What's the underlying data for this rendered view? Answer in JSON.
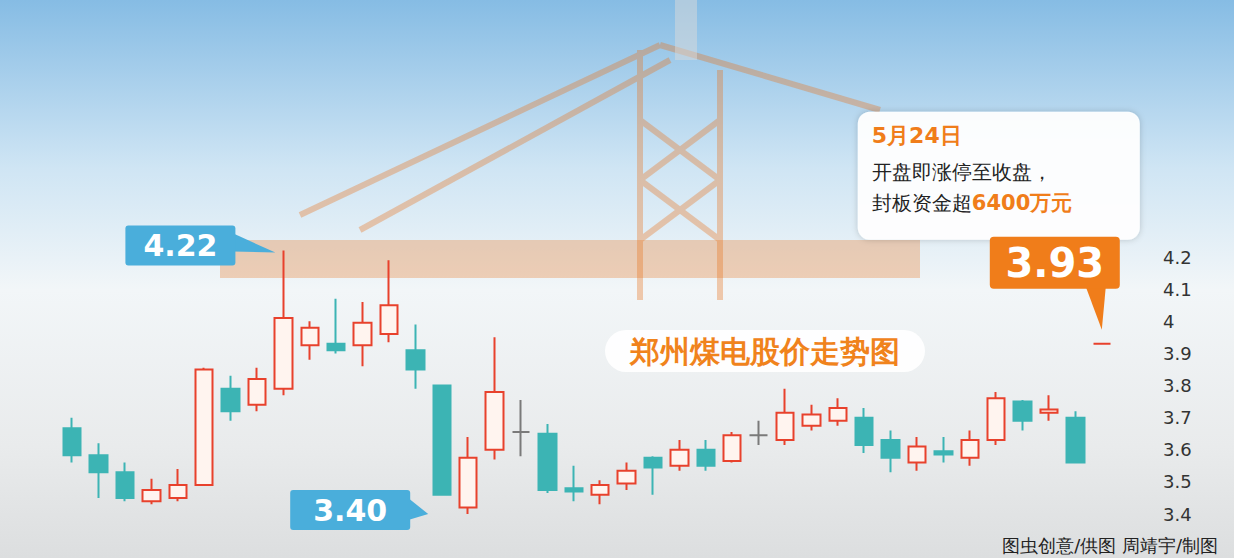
{
  "chart_data": {
    "type": "candlestick",
    "title": "郑州煤电股价走势图",
    "categories": [
      null,
      null,
      null,
      null,
      null,
      null,
      null,
      null,
      null,
      null,
      null,
      null,
      null,
      null,
      null,
      null,
      null,
      null,
      null,
      null,
      null,
      null,
      null,
      null,
      null,
      null,
      null,
      null,
      null,
      null,
      null,
      null,
      null,
      null,
      null,
      null,
      null,
      null,
      null,
      null
    ],
    "values": [
      [
        3.667,
        3.583,
        3.56,
        3.7
      ],
      [
        3.583,
        3.53,
        3.45,
        3.62
      ],
      [
        3.53,
        3.45,
        3.44,
        3.56
      ],
      [
        3.44,
        3.475,
        3.43,
        3.51
      ],
      [
        3.45,
        3.49,
        3.44,
        3.54
      ],
      [
        3.49,
        3.85,
        3.49,
        3.855
      ],
      [
        3.79,
        3.72,
        3.69,
        3.83
      ],
      [
        3.74,
        3.82,
        3.72,
        3.855
      ],
      [
        3.79,
        4.01,
        3.77,
        4.22
      ],
      [
        3.925,
        3.98,
        3.88,
        4.0
      ],
      [
        3.93,
        3.91,
        3.9,
        4.07
      ],
      [
        3.925,
        3.995,
        3.86,
        4.06
      ],
      [
        3.96,
        4.05,
        3.935,
        4.19
      ],
      [
        3.91,
        3.85,
        3.79,
        3.99
      ],
      [
        3.8,
        3.46,
        3.46,
        3.8
      ],
      [
        3.42,
        3.575,
        3.4,
        3.64
      ],
      [
        3.6,
        3.78,
        3.57,
        3.95
      ],
      [
        3.655,
        3.655,
        3.58,
        3.755
      ],
      [
        3.65,
        3.475,
        3.465,
        3.68
      ],
      [
        3.48,
        3.47,
        3.44,
        3.55
      ],
      [
        3.46,
        3.49,
        3.43,
        3.505
      ],
      [
        3.495,
        3.535,
        3.475,
        3.56
      ],
      [
        3.575,
        3.545,
        3.46,
        3.58
      ],
      [
        3.55,
        3.6,
        3.535,
        3.63
      ],
      [
        3.6,
        3.55,
        3.535,
        3.63
      ],
      [
        3.565,
        3.645,
        3.56,
        3.655
      ],
      [
        3.645,
        3.645,
        3.615,
        3.69
      ],
      [
        3.63,
        3.715,
        3.615,
        3.79
      ],
      [
        3.675,
        3.71,
        3.66,
        3.74
      ],
      [
        3.69,
        3.73,
        3.675,
        3.76
      ],
      [
        3.7,
        3.615,
        3.59,
        3.73
      ],
      [
        3.63,
        3.575,
        3.53,
        3.66
      ],
      [
        3.56,
        3.61,
        3.535,
        3.64
      ],
      [
        3.595,
        3.585,
        3.56,
        3.64
      ],
      [
        3.575,
        3.63,
        3.55,
        3.66
      ],
      [
        3.63,
        3.76,
        3.615,
        3.78
      ],
      [
        3.75,
        3.69,
        3.66,
        3.755
      ],
      [
        3.715,
        3.725,
        3.69,
        3.77
      ],
      [
        3.7,
        3.56,
        3.56,
        3.72
      ],
      [
        3.93,
        3.93,
        3.93,
        3.93
      ]
    ],
    "colors": [
      "#3cb4b4",
      "#3cb4b4",
      "#3cb4b4",
      "#e8412c",
      "#e8412c",
      "#e8412c",
      "#3cb4b4",
      "#e8412c",
      "#e8412c",
      "#e8412c",
      "#3cb4b4",
      "#e8412c",
      "#e8412c",
      "#3cb4b4",
      "#3cb4b4",
      "#e8412c",
      "#e8412c",
      "#7a7a7a",
      "#3cb4b4",
      "#3cb4b4",
      "#e8412c",
      "#e8412c",
      "#3cb4b4",
      "#e8412c",
      "#3cb4b4",
      "#e8412c",
      "#7a7a7a",
      "#e8412c",
      "#e8412c",
      "#e8412c",
      "#3cb4b4",
      "#3cb4b4",
      "#e8412c",
      "#3cb4b4",
      "#e8412c",
      "#e8412c",
      "#3cb4b4",
      "#e8412c",
      "#3cb4b4",
      "#e8412c"
    ],
    "ylim": [
      3.4,
      4.2
    ],
    "yticks": [
      3.4,
      3.5,
      3.6,
      3.7,
      3.8,
      3.9,
      4,
      4.1,
      4.2
    ],
    "grid": false,
    "tick_labels": "y",
    "annotations": [
      {
        "label": "4.22",
        "value": 4.22,
        "color": "#4aaedb"
      },
      {
        "label": "3.40",
        "value": 3.4,
        "color": "#4aaedb"
      },
      {
        "label": "3.93",
        "value": 3.93,
        "color": "#f07d1a"
      }
    ],
    "callout": {
      "title": "5月24日",
      "lines": [
        [
          "开盘即涨停至收盘，"
        ],
        [
          "封板资金超",
          "6400万元"
        ]
      ]
    },
    "source": "图虫创意/供图 周靖宇/制图"
  }
}
